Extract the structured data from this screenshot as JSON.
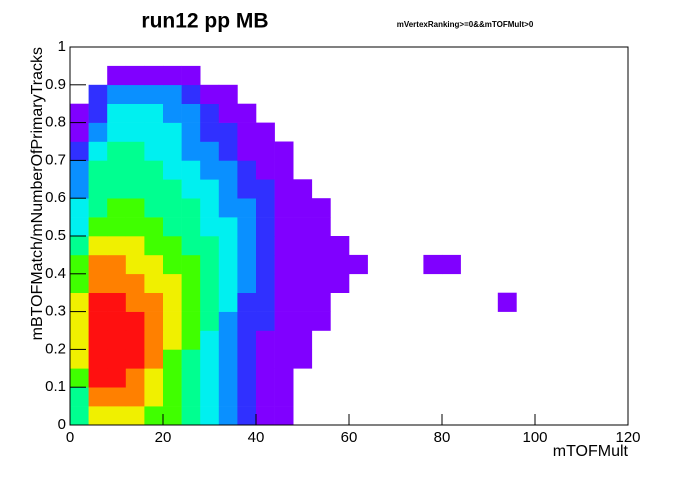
{
  "chart_data": {
    "type": "heatmap",
    "title": "run12 pp MB",
    "subtitle": "mVertexRanking>=0&&mTOFMult>0",
    "xlabel": "mTOFMult",
    "ylabel": "mBTOFMatch/mNumberOfPrimaryTracks",
    "xlim": [
      0,
      120
    ],
    "ylim": [
      0,
      1
    ],
    "xticks": [
      0,
      20,
      40,
      60,
      80,
      100,
      120
    ],
    "yticks": [
      0,
      {
        "value": 0.1,
        "label": "0.1"
      },
      {
        "value": 0.2,
        "label": "0.2"
      },
      {
        "value": 0.3,
        "label": "0.3"
      },
      {
        "value": 0.4,
        "label": "0.4"
      },
      {
        "value": 0.5,
        "label": "0.5"
      },
      {
        "value": 0.6,
        "label": "0.6"
      },
      {
        "value": 0.7,
        "label": "0.7"
      },
      {
        "value": 0.8,
        "label": "0.8"
      },
      {
        "value": 0.9,
        "label": "0.9"
      },
      1
    ],
    "xbins": [
      0,
      4,
      8,
      12,
      16,
      20,
      24,
      28,
      32,
      36,
      40,
      44,
      48,
      52,
      56,
      60,
      64,
      68,
      72,
      76,
      80,
      84,
      88,
      92,
      96
    ],
    "ybins": [
      0,
      0.05,
      0.1,
      0.15,
      0.2,
      0.25,
      0.3,
      0.35,
      0.4,
      0.45,
      0.5,
      0.55,
      0.6,
      0.65,
      0.7,
      0.75,
      0.8,
      0.85,
      0.9,
      0.95,
      1
    ],
    "palette": [
      "#8000ff",
      "#3030ff",
      "#0a90ff",
      "#00f0f0",
      "#00ff90",
      "#40ff00",
      "#f0f000",
      "#ff8000",
      "#ff1010"
    ],
    "z": [
      [
        5,
        7,
        7,
        7,
        6,
        6,
        5,
        4,
        3,
        2,
        1,
        1,
        0,
        0,
        0,
        0,
        0,
        0,
        0,
        0,
        0,
        0,
        0,
        0
      ],
      [
        5,
        8,
        8,
        8,
        7,
        6,
        5,
        4,
        3,
        2,
        1,
        1,
        0,
        0,
        0,
        0,
        0,
        0,
        0,
        0,
        0,
        0,
        0,
        0
      ],
      [
        6,
        9,
        9,
        8,
        7,
        6,
        5,
        4,
        3,
        2,
        1,
        1,
        0,
        0,
        0,
        0,
        0,
        0,
        0,
        0,
        0,
        0,
        0,
        0
      ],
      [
        7,
        9,
        9,
        9,
        8,
        6,
        5,
        4,
        3,
        2,
        1,
        1,
        1,
        0,
        0,
        0,
        0,
        0,
        0,
        0,
        0,
        0,
        0,
        0
      ],
      [
        7,
        9,
        9,
        9,
        8,
        7,
        6,
        4,
        3,
        2,
        1,
        1,
        1,
        0,
        0,
        0,
        0,
        0,
        0,
        0,
        0,
        0,
        0,
        0
      ],
      [
        7,
        9,
        9,
        9,
        8,
        7,
        6,
        5,
        3,
        2,
        2,
        1,
        1,
        1,
        0,
        0,
        0,
        0,
        0,
        0,
        0,
        0,
        0,
        0
      ],
      [
        7,
        9,
        9,
        8,
        8,
        7,
        6,
        5,
        4,
        2,
        2,
        1,
        1,
        1,
        0,
        0,
        0,
        0,
        0,
        0,
        0,
        0,
        0,
        1
      ],
      [
        6,
        8,
        8,
        8,
        7,
        7,
        6,
        5,
        4,
        3,
        2,
        1,
        1,
        1,
        1,
        0,
        0,
        0,
        0,
        0,
        0,
        0,
        0,
        0
      ],
      [
        6,
        8,
        8,
        7,
        7,
        6,
        6,
        5,
        4,
        3,
        2,
        1,
        1,
        1,
        1,
        1,
        0,
        0,
        0,
        1,
        1,
        0,
        0,
        0
      ],
      [
        5,
        7,
        7,
        7,
        6,
        6,
        5,
        5,
        4,
        3,
        2,
        1,
        1,
        1,
        1,
        0,
        0,
        0,
        0,
        0,
        0,
        0,
        0,
        0
      ],
      [
        4,
        6,
        6,
        6,
        6,
        5,
        5,
        4,
        4,
        3,
        2,
        1,
        1,
        1,
        0,
        0,
        0,
        0,
        0,
        0,
        0,
        0,
        0,
        0
      ],
      [
        4,
        5,
        6,
        6,
        5,
        5,
        5,
        4,
        3,
        3,
        2,
        1,
        1,
        1,
        0,
        0,
        0,
        0,
        0,
        0,
        0,
        0,
        0,
        0
      ],
      [
        3,
        5,
        5,
        5,
        5,
        5,
        4,
        4,
        3,
        2,
        2,
        1,
        1,
        0,
        0,
        0,
        0,
        0,
        0,
        0,
        0,
        0,
        0,
        0
      ],
      [
        3,
        5,
        5,
        5,
        5,
        4,
        4,
        3,
        3,
        2,
        1,
        1,
        0,
        0,
        0,
        0,
        0,
        0,
        0,
        0,
        0,
        0,
        0,
        0
      ],
      [
        2,
        4,
        5,
        5,
        4,
        4,
        3,
        3,
        2,
        1,
        1,
        1,
        0,
        0,
        0,
        0,
        0,
        0,
        0,
        0,
        0,
        0,
        0,
        0
      ],
      [
        1,
        3,
        4,
        4,
        4,
        4,
        3,
        2,
        2,
        1,
        1,
        0,
        0,
        0,
        0,
        0,
        0,
        0,
        0,
        0,
        0,
        0,
        0,
        0
      ],
      [
        1,
        2,
        4,
        4,
        4,
        3,
        3,
        2,
        1,
        1,
        0,
        0,
        0,
        0,
        0,
        0,
        0,
        0,
        0,
        0,
        0,
        0,
        0,
        0
      ],
      [
        0,
        2,
        3,
        3,
        3,
        3,
        2,
        1,
        1,
        0,
        0,
        0,
        0,
        0,
        0,
        0,
        0,
        0,
        0,
        0,
        0,
        0,
        0,
        0
      ],
      [
        0,
        0,
        1,
        1,
        1,
        1,
        1,
        0,
        0,
        0,
        0,
        0,
        0,
        0,
        0,
        0,
        0,
        0,
        0,
        0,
        0,
        0,
        0,
        0
      ],
      [
        0,
        0,
        0,
        0,
        0,
        0,
        0,
        0,
        0,
        0,
        0,
        0,
        0,
        0,
        0,
        0,
        0,
        0,
        0,
        0,
        0,
        0,
        0,
        0
      ]
    ]
  }
}
